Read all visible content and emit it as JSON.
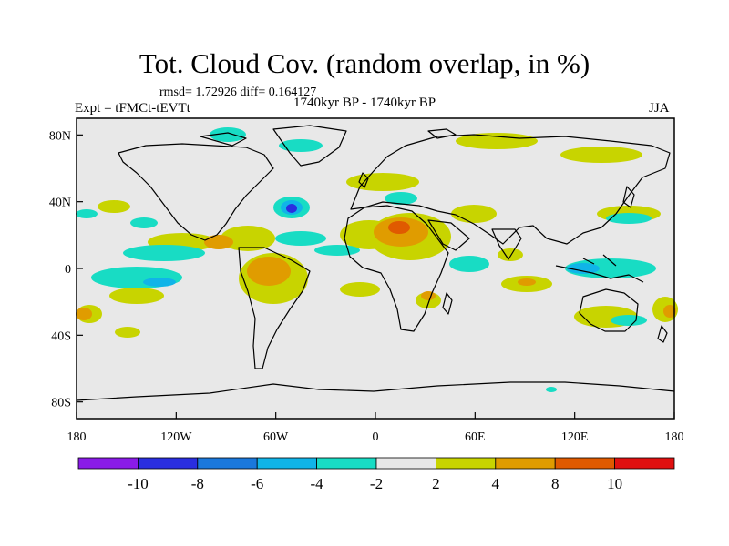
{
  "header": {
    "title": "Tot. Cloud Cov. (random overlap, in %)",
    "stats": "rmsd= 1.72926  diff= 0.164127",
    "expt": "Expt = tFMCt-tEVTt",
    "period": "1740kyr BP - 1740kyr BP",
    "season": "JJA"
  },
  "axes": {
    "lon_ticks": [
      "180",
      "120W",
      "60W",
      "0",
      "60E",
      "120E",
      "180"
    ],
    "lat_ticks": [
      "80N",
      "40N",
      "0",
      "40S",
      "80S"
    ]
  },
  "colorbar": {
    "labels": [
      "-10",
      "-8",
      "-6",
      "-4",
      "-2",
      "2",
      "4",
      "8",
      "10"
    ],
    "colors": [
      "#8a1be8",
      "#2a2ee0",
      "#1a78dc",
      "#10b4e8",
      "#18dcc4",
      "#e8e8e8",
      "#c8d400",
      "#e09c00",
      "#e05a00",
      "#e01010"
    ]
  },
  "map": {
    "ocean_land_fill": "#e8e8e8"
  }
}
